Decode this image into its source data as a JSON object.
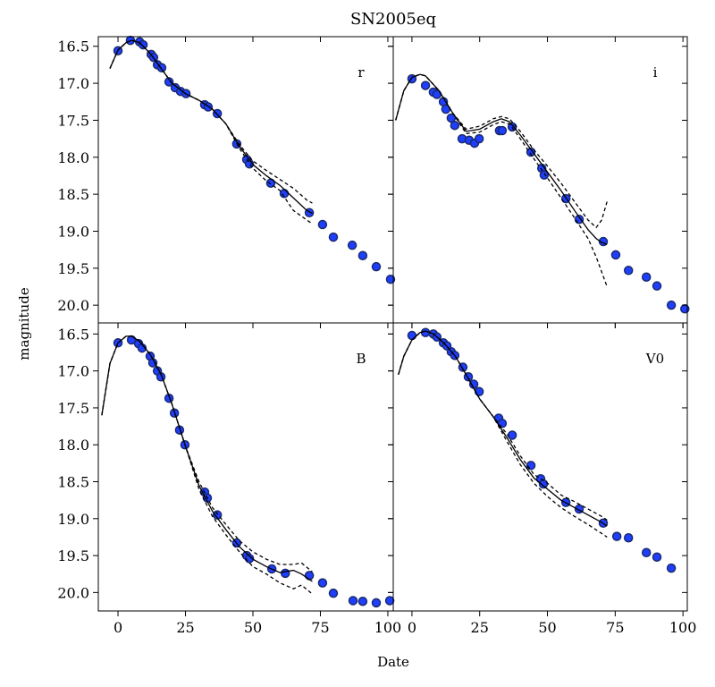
{
  "title": "SN2005eq",
  "xlabel": "Date",
  "ylabel": "magnitude",
  "chart_data": [
    {
      "type": "scatter",
      "label": "r",
      "xlim": [
        -7.3,
        102
      ],
      "ylim": [
        20.24,
        16.37
      ],
      "xticks": [
        0,
        25,
        50,
        75,
        100
      ],
      "yticks": [
        16.5,
        {
          "value": 17,
          "label": "17.0"
        },
        17.5,
        {
          "value": 18,
          "label": "18.0"
        },
        18.5,
        {
          "value": 19,
          "label": "19.0"
        },
        19.5,
        {
          "value": 20,
          "label": "20.0"
        }
      ],
      "show_xticklabels": false,
      "show_yticklabels": true,
      "series": [
        {
          "style": "marker",
          "color": "#1f3fff",
          "x": [
            0,
            4.6,
            8,
            9.3,
            12.3,
            13.2,
            14.6,
            16.2,
            18.9,
            21.2,
            23.2,
            25.2,
            32.1,
            33.4,
            36.8,
            44,
            47.7,
            48.7,
            56.6,
            61.6,
            70.9,
            75.8,
            79.8,
            86.8,
            90.7,
            95.7,
            101
          ],
          "values": [
            16.56,
            16.42,
            16.44,
            16.48,
            16.61,
            16.65,
            16.75,
            16.79,
            16.98,
            17.06,
            17.11,
            17.14,
            17.29,
            17.32,
            17.41,
            17.82,
            18.03,
            18.09,
            18.35,
            18.49,
            18.75,
            18.91,
            19.08,
            19.19,
            19.33,
            19.48,
            19.65
          ]
        },
        {
          "style": "solid",
          "color": "#000000",
          "x": [
            -3,
            0,
            3,
            5,
            8,
            12,
            16,
            20,
            25,
            30,
            35,
            40,
            45,
            50,
            55,
            60,
            65,
            70,
            72
          ],
          "values": [
            16.8,
            16.55,
            16.45,
            16.42,
            16.45,
            16.6,
            16.8,
            17.0,
            17.14,
            17.23,
            17.35,
            17.55,
            17.85,
            18.1,
            18.25,
            18.38,
            18.55,
            18.72,
            18.76
          ]
        },
        {
          "style": "dashed",
          "color": "#000000",
          "x": [
            -3,
            0,
            3,
            5,
            8,
            12,
            16,
            20,
            25,
            30,
            35,
            40,
            45,
            50,
            55,
            60,
            65,
            70,
            72
          ],
          "values": [
            16.8,
            16.55,
            16.45,
            16.42,
            16.45,
            16.6,
            16.8,
            17.0,
            17.14,
            17.23,
            17.35,
            17.55,
            17.83,
            18.05,
            18.18,
            18.3,
            18.42,
            18.58,
            18.62
          ]
        },
        {
          "style": "dashed",
          "color": "#000000",
          "x": [
            -3,
            0,
            3,
            5,
            8,
            12,
            16,
            20,
            25,
            30,
            35,
            40,
            45,
            50,
            55,
            60,
            65,
            70,
            72
          ],
          "values": [
            16.8,
            16.55,
            16.45,
            16.42,
            16.45,
            16.6,
            16.8,
            17.0,
            17.14,
            17.23,
            17.35,
            17.55,
            17.88,
            18.15,
            18.32,
            18.45,
            18.72,
            18.85,
            18.9
          ]
        }
      ]
    },
    {
      "type": "scatter",
      "label": "i",
      "xlim": [
        -6.9,
        101.6
      ],
      "ylim": [
        20.24,
        16.37
      ],
      "xticks": [
        0,
        25,
        50,
        75,
        100
      ],
      "yticks": [
        16.5,
        17,
        17.5,
        18,
        18.5,
        19,
        19.5,
        20
      ],
      "show_xticklabels": false,
      "show_yticklabels": false,
      "series": [
        {
          "style": "marker",
          "color": "#1f3fff",
          "x": [
            0,
            5,
            7.9,
            9.2,
            11.6,
            12.5,
            14.5,
            15.8,
            18.5,
            21.1,
            23.1,
            24.8,
            32.3,
            33.3,
            37,
            43.9,
            47.9,
            48.8,
            56.8,
            61.7,
            70.6,
            75.2,
            79.9,
            86.5,
            90.4,
            95.7,
            100.7
          ],
          "values": [
            16.94,
            17.03,
            17.12,
            17.15,
            17.25,
            17.35,
            17.47,
            17.57,
            17.75,
            17.77,
            17.81,
            17.75,
            17.64,
            17.64,
            17.59,
            17.93,
            18.15,
            18.24,
            18.56,
            18.84,
            19.14,
            19.32,
            19.53,
            19.62,
            19.74,
            20.0,
            20.05
          ]
        },
        {
          "style": "solid",
          "color": "#000000",
          "x": [
            -6,
            -3,
            0,
            3,
            5,
            10,
            15,
            20,
            25,
            30,
            33,
            36,
            40,
            45,
            50,
            55,
            60,
            65,
            68,
            70,
            72
          ],
          "values": [
            17.5,
            17.1,
            16.92,
            16.88,
            16.9,
            17.1,
            17.4,
            17.65,
            17.62,
            17.52,
            17.48,
            17.52,
            17.7,
            17.95,
            18.2,
            18.45,
            18.72,
            18.98,
            19.1,
            19.15,
            19.18
          ]
        },
        {
          "style": "dashed",
          "color": "#000000",
          "x": [
            -6,
            -3,
            0,
            3,
            5,
            10,
            15,
            20,
            25,
            30,
            33,
            36,
            40,
            45,
            50,
            55,
            60,
            65,
            68,
            70,
            72
          ],
          "values": [
            17.5,
            17.1,
            16.92,
            16.88,
            16.9,
            17.1,
            17.4,
            17.62,
            17.58,
            17.48,
            17.45,
            17.48,
            17.65,
            17.9,
            18.12,
            18.35,
            18.6,
            18.85,
            18.95,
            18.85,
            18.6
          ]
        },
        {
          "style": "dashed",
          "color": "#000000",
          "x": [
            -6,
            -3,
            0,
            3,
            5,
            10,
            15,
            20,
            25,
            30,
            33,
            36,
            40,
            45,
            50,
            55,
            60,
            65,
            68,
            70,
            72
          ],
          "values": [
            17.5,
            17.1,
            16.92,
            16.88,
            16.9,
            17.1,
            17.4,
            17.68,
            17.66,
            17.56,
            17.52,
            17.55,
            17.75,
            18.02,
            18.28,
            18.55,
            18.82,
            19.1,
            19.35,
            19.55,
            19.75
          ]
        }
      ]
    },
    {
      "type": "scatter",
      "label": "B",
      "xlim": [
        -7.3,
        102
      ],
      "ylim": [
        20.25,
        16.35
      ],
      "xticks": [
        0,
        25,
        50,
        75,
        100
      ],
      "yticks": [
        16.5,
        {
          "value": 17,
          "label": "17.0"
        },
        17.5,
        {
          "value": 18,
          "label": "18.0"
        },
        18.5,
        {
          "value": 19,
          "label": "19.0"
        },
        19.5,
        {
          "value": 20,
          "label": "20.0"
        }
      ],
      "show_xticklabels": true,
      "show_yticklabels": true,
      "series": [
        {
          "style": "marker",
          "color": "#1f3fff",
          "x": [
            0,
            5,
            7.6,
            8.9,
            11.9,
            12.9,
            14.6,
            15.9,
            18.9,
            20.9,
            22.8,
            24.8,
            32.1,
            33.1,
            36.8,
            44,
            47.7,
            48.7,
            57,
            62,
            70.9,
            75.8,
            79.8,
            87.1,
            90.7,
            95.7,
            100.7
          ],
          "values": [
            16.62,
            16.58,
            16.63,
            16.69,
            16.8,
            16.89,
            17.0,
            17.08,
            17.37,
            17.57,
            17.8,
            18.0,
            18.64,
            18.72,
            18.95,
            19.33,
            19.5,
            19.54,
            19.68,
            19.74,
            19.77,
            19.87,
            20.01,
            20.11,
            20.12,
            20.14,
            20.11
          ]
        },
        {
          "style": "solid",
          "color": "#000000",
          "x": [
            -6,
            -3,
            0,
            3,
            5,
            8,
            12,
            16,
            20,
            25,
            30,
            35,
            40,
            45,
            50,
            55,
            60,
            65,
            68,
            72
          ],
          "values": [
            17.6,
            16.9,
            16.62,
            16.53,
            16.53,
            16.6,
            16.78,
            17.05,
            17.45,
            18.02,
            18.55,
            18.9,
            19.15,
            19.38,
            19.55,
            19.65,
            19.73,
            19.7,
            19.75,
            19.85
          ]
        },
        {
          "style": "dashed",
          "color": "#000000",
          "x": [
            -6,
            -3,
            0,
            3,
            5,
            8,
            12,
            16,
            20,
            25,
            30,
            35,
            40,
            45,
            50,
            55,
            60,
            65,
            68,
            72
          ],
          "values": [
            17.6,
            16.9,
            16.62,
            16.53,
            16.53,
            16.6,
            16.78,
            17.05,
            17.45,
            18.02,
            18.5,
            18.85,
            19.08,
            19.3,
            19.45,
            19.55,
            19.62,
            19.62,
            19.6,
            19.72
          ]
        },
        {
          "style": "dashed",
          "color": "#000000",
          "x": [
            -6,
            -3,
            0,
            3,
            5,
            8,
            12,
            16,
            20,
            25,
            30,
            35,
            40,
            45,
            50,
            55,
            60,
            65,
            68,
            72
          ],
          "values": [
            17.6,
            16.9,
            16.62,
            16.53,
            16.53,
            16.6,
            16.78,
            17.05,
            17.45,
            18.02,
            18.6,
            18.97,
            19.22,
            19.45,
            19.65,
            19.75,
            19.87,
            19.95,
            19.9,
            20.02
          ]
        }
      ]
    },
    {
      "type": "scatter",
      "label": "V0",
      "xlim": [
        -6.9,
        101.6
      ],
      "ylim": [
        20.25,
        16.35
      ],
      "xticks": [
        0,
        25,
        50,
        75,
        100
      ],
      "yticks": [
        16.5,
        17,
        17.5,
        18,
        18.5,
        19,
        19.5,
        20
      ],
      "show_xticklabels": true,
      "show_yticklabels": false,
      "series": [
        {
          "style": "marker",
          "color": "#1f3fff",
          "x": [
            0,
            5,
            7.9,
            9.2,
            11.6,
            12.9,
            14.5,
            15.8,
            18.8,
            20.8,
            22.8,
            24.8,
            32,
            33.3,
            37,
            43.9,
            47.5,
            48.5,
            56.8,
            61.7,
            70.6,
            75.6,
            79.9,
            86.5,
            90.4,
            95.7
          ],
          "values": [
            16.52,
            16.48,
            16.5,
            16.54,
            16.62,
            16.66,
            16.74,
            16.79,
            16.95,
            17.08,
            17.18,
            17.28,
            17.64,
            17.71,
            17.87,
            18.28,
            18.46,
            18.53,
            18.78,
            18.87,
            19.06,
            19.24,
            19.26,
            19.46,
            19.52,
            19.67
          ]
        },
        {
          "style": "solid",
          "color": "#000000",
          "x": [
            -5,
            -3,
            0,
            3,
            5,
            8,
            12,
            16,
            20,
            25,
            30,
            35,
            40,
            45,
            50,
            55,
            60,
            65,
            70,
            72
          ],
          "values": [
            17.05,
            16.8,
            16.58,
            16.48,
            16.46,
            16.5,
            16.63,
            16.8,
            17.05,
            17.38,
            17.62,
            17.9,
            18.2,
            18.45,
            18.6,
            18.75,
            18.85,
            18.95,
            19.05,
            19.1
          ]
        },
        {
          "style": "dashed",
          "color": "#000000",
          "x": [
            -5,
            -3,
            0,
            3,
            5,
            8,
            12,
            16,
            20,
            25,
            30,
            35,
            40,
            45,
            50,
            55,
            60,
            65,
            70,
            72
          ],
          "values": [
            17.05,
            16.8,
            16.58,
            16.48,
            16.46,
            16.5,
            16.63,
            16.8,
            17.05,
            17.38,
            17.62,
            17.85,
            18.15,
            18.4,
            18.52,
            18.68,
            18.77,
            18.87,
            18.97,
            19.02
          ]
        },
        {
          "style": "dashed",
          "color": "#000000",
          "x": [
            -5,
            -3,
            0,
            3,
            5,
            8,
            12,
            16,
            20,
            25,
            30,
            35,
            40,
            45,
            50,
            55,
            60,
            65,
            70,
            72
          ],
          "values": [
            17.05,
            16.8,
            16.58,
            16.48,
            16.46,
            16.5,
            16.63,
            16.8,
            17.05,
            17.38,
            17.62,
            17.95,
            18.27,
            18.52,
            18.7,
            18.85,
            18.97,
            19.08,
            19.2,
            19.25
          ]
        }
      ]
    }
  ]
}
